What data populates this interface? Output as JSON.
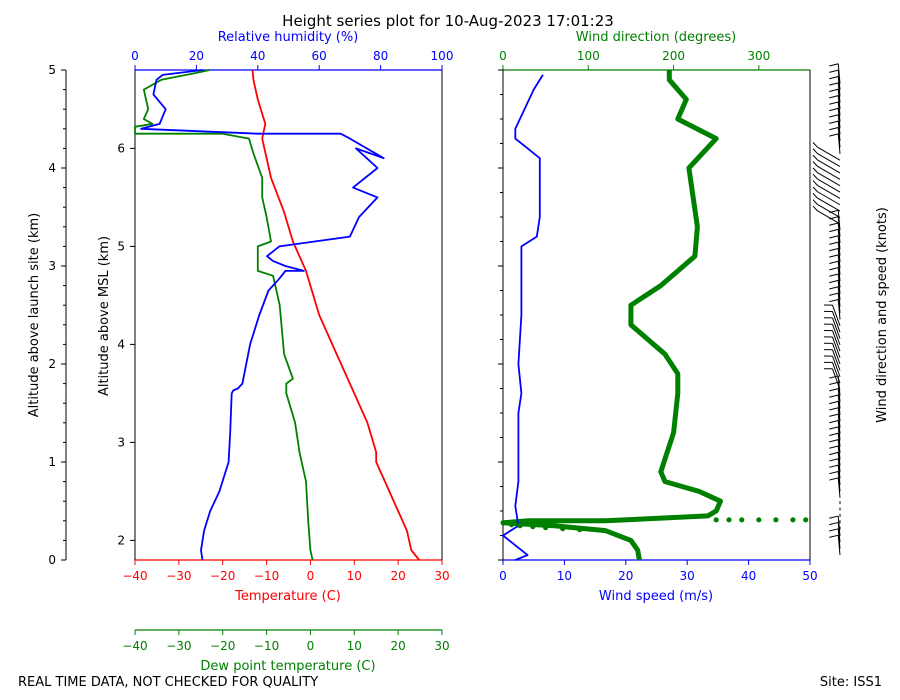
{
  "title": "Height series plot for 10-Aug-2023 17:01:23",
  "footer_left": "REAL TIME DATA, NOT CHECKED FOR QUALITY",
  "footer_right": "Site: ISS1",
  "colors": {
    "temperature": "#ff0000",
    "dewpoint": "#008000",
    "rh": "#0000ff",
    "wdir": "#008000",
    "wspd": "#0000ff",
    "barb": "#000000"
  },
  "chart_data": [
    {
      "type": "line",
      "name": "thermo-panel",
      "labels": {
        "launch_alt": "Altitude above launch site (km)",
        "msl_alt": "Altitude above MSL (km)",
        "temperature": "Temperature (C)",
        "rh": "Relative humidity (%)",
        "dewpoint": "Dew point temperature (C)"
      },
      "ylim_launch_km": [
        0,
        5
      ],
      "launch_ticks": [
        "0",
        "1",
        "2",
        "3",
        "4",
        "5"
      ],
      "msl_ticks": [
        "2",
        "3",
        "4",
        "5",
        "6"
      ],
      "msl_tick_values": [
        2,
        3,
        4,
        5,
        6
      ],
      "temp_xlim": [
        -40,
        30
      ],
      "temp_ticks": [
        "−40",
        "−30",
        "−20",
        "−10",
        "0",
        "10",
        "20",
        "30"
      ],
      "rh_xlim": [
        0,
        100
      ],
      "rh_ticks": [
        "0",
        "20",
        "40",
        "60",
        "80",
        "100"
      ],
      "dew_xlim": [
        -40,
        30
      ],
      "dew_ticks": [
        "−40",
        "−30",
        "−20",
        "−10",
        "0",
        "10",
        "20",
        "30"
      ],
      "series": [
        {
          "name": "Temperature",
          "x_units": "C",
          "points": [
            [
              24.8,
              0
            ],
            [
              23,
              0.1
            ],
            [
              22,
              0.3
            ],
            [
              20,
              0.5
            ],
            [
              17,
              0.8
            ],
            [
              15,
              1.0
            ],
            [
              15,
              1.1
            ],
            [
              13,
              1.4
            ],
            [
              11,
              1.6
            ],
            [
              8,
              1.9
            ],
            [
              6,
              2.1
            ],
            [
              2,
              2.5
            ],
            [
              0,
              2.8
            ],
            [
              -1,
              2.95
            ],
            [
              -4,
              3.25
            ],
            [
              -6,
              3.55
            ],
            [
              -9,
              3.9
            ],
            [
              -10,
              4.1
            ],
            [
              -11,
              4.3
            ],
            [
              -10.3,
              4.45
            ],
            [
              -12,
              4.7
            ],
            [
              -13,
              4.9
            ],
            [
              -13.2,
              5.0
            ]
          ]
        },
        {
          "name": "Relative humidity",
          "x_units": "%",
          "points": [
            [
              22,
              0
            ],
            [
              21.5,
              0.1
            ],
            [
              22.5,
              0.3
            ],
            [
              24.5,
              0.5
            ],
            [
              27.5,
              0.7
            ],
            [
              30.5,
              1.0
            ],
            [
              31,
              1.3
            ],
            [
              31.5,
              1.7
            ],
            [
              32,
              1.73
            ],
            [
              33.5,
              1.75
            ],
            [
              35,
              1.8
            ],
            [
              37.5,
              2.2
            ],
            [
              40.5,
              2.5
            ],
            [
              43.5,
              2.75
            ],
            [
              47,
              2.87
            ],
            [
              49,
              2.95
            ],
            [
              55,
              2.95
            ],
            [
              49,
              3.0
            ],
            [
              45,
              3.05
            ],
            [
              43,
              3.1
            ],
            [
              47,
              3.2
            ],
            [
              70,
              3.3
            ],
            [
              73,
              3.5
            ],
            [
              79,
              3.7
            ],
            [
              71,
              3.8
            ],
            [
              79,
              4.0
            ],
            [
              72,
              4.2
            ],
            [
              81,
              4.1
            ],
            [
              70,
              4.3
            ],
            [
              67,
              4.35
            ],
            [
              40,
              4.35
            ],
            [
              2,
              4.4
            ],
            [
              8,
              4.45
            ],
            [
              10,
              4.6
            ],
            [
              6,
              4.75
            ],
            [
              7,
              4.9
            ],
            [
              9,
              4.95
            ],
            [
              22,
              5.0
            ]
          ]
        },
        {
          "name": "Dew point",
          "x_units": "C",
          "points": [
            [
              0.5,
              0
            ],
            [
              0,
              0.1
            ],
            [
              -0.5,
              0.4
            ],
            [
              -1,
              0.8
            ],
            [
              -2.5,
              1.1
            ],
            [
              -3.5,
              1.4
            ],
            [
              -5.5,
              1.7
            ],
            [
              -5.5,
              1.8
            ],
            [
              -4,
              1.85
            ],
            [
              -6,
              2.1
            ],
            [
              -7,
              2.6
            ],
            [
              -8.5,
              2.9
            ],
            [
              -12,
              2.95
            ],
            [
              -12,
              3.1
            ],
            [
              -12,
              3.2
            ],
            [
              -9,
              3.25
            ],
            [
              -10,
              3.5
            ],
            [
              -11,
              3.7
            ],
            [
              -11,
              3.9
            ],
            [
              -13,
              4.15
            ],
            [
              -14,
              4.3
            ],
            [
              -20,
              4.35
            ],
            [
              -40,
              4.35
            ],
            [
              -40,
              4.42
            ],
            [
              -36,
              4.45
            ],
            [
              -38,
              4.5
            ],
            [
              -37,
              4.6
            ],
            [
              -38,
              4.8
            ],
            [
              -34,
              4.9
            ],
            [
              -26,
              4.97
            ],
            [
              -23,
              5.0
            ]
          ]
        }
      ]
    },
    {
      "type": "line",
      "name": "wind-panel",
      "labels": {
        "speed": "Wind speed (m/s)",
        "direction": "Wind direction (degrees)",
        "barbs": "Wind direction and speed (knots)"
      },
      "ylim_launch_km": [
        0,
        5
      ],
      "speed_xlim": [
        0,
        50
      ],
      "speed_ticks": [
        "0",
        "10",
        "20",
        "30",
        "40",
        "50"
      ],
      "dir_xlim": [
        0,
        360
      ],
      "dir_ticks": [
        "0",
        "100",
        "200",
        "300"
      ],
      "dir_tick_values": [
        0,
        100,
        200,
        300
      ],
      "series": [
        {
          "name": "Wind speed",
          "x_units": "m/s",
          "points": [
            [
              2,
              0
            ],
            [
              4,
              0.05
            ],
            [
              2,
              0.15
            ],
            [
              0,
              0.25
            ],
            [
              2.5,
              0.35
            ],
            [
              2,
              0.55
            ],
            [
              2.5,
              0.8
            ],
            [
              2.5,
              1.1
            ],
            [
              2.5,
              1.5
            ],
            [
              3,
              1.7
            ],
            [
              2.5,
              2.0
            ],
            [
              3,
              2.5
            ],
            [
              3,
              2.8
            ],
            [
              3,
              3.1
            ],
            [
              3,
              3.2
            ],
            [
              5.5,
              3.3
            ],
            [
              6,
              3.5
            ],
            [
              6,
              4.1
            ],
            [
              2,
              4.3
            ],
            [
              2,
              4.4
            ],
            [
              3.5,
              4.6
            ],
            [
              5,
              4.8
            ],
            [
              6.5,
              4.95
            ]
          ]
        },
        {
          "name": "Wind direction",
          "x_units": "deg",
          "points": [
            [
              160,
              0.0
            ],
            [
              158,
              0.1
            ],
            [
              150,
              0.2
            ],
            [
              120,
              0.3
            ],
            [
              60,
              0.35
            ],
            [
              0,
              0.38
            ],
            [
              30,
              0.4
            ],
            [
              120,
              0.4
            ],
            [
              240,
              0.45
            ],
            [
              250,
              0.5
            ],
            [
              255,
              0.6
            ],
            [
              230,
              0.7
            ],
            [
              190,
              0.8
            ],
            [
              185,
              0.9
            ],
            [
              200,
              1.3
            ],
            [
              205,
              1.7
            ],
            [
              205,
              1.9
            ],
            [
              190,
              2.1
            ],
            [
              150,
              2.4
            ],
            [
              150,
              2.6
            ],
            [
              185,
              2.8
            ],
            [
              225,
              3.1
            ],
            [
              228,
              3.4
            ],
            [
              218,
              4.0
            ],
            [
              250,
              4.3
            ],
            [
              205,
              4.5
            ],
            [
              215,
              4.7
            ],
            [
              195,
              4.9
            ],
            [
              195,
              5.0
            ]
          ]
        },
        {
          "name": "Wind barbs",
          "x_units": "knots",
          "values": []
        }
      ]
    }
  ]
}
